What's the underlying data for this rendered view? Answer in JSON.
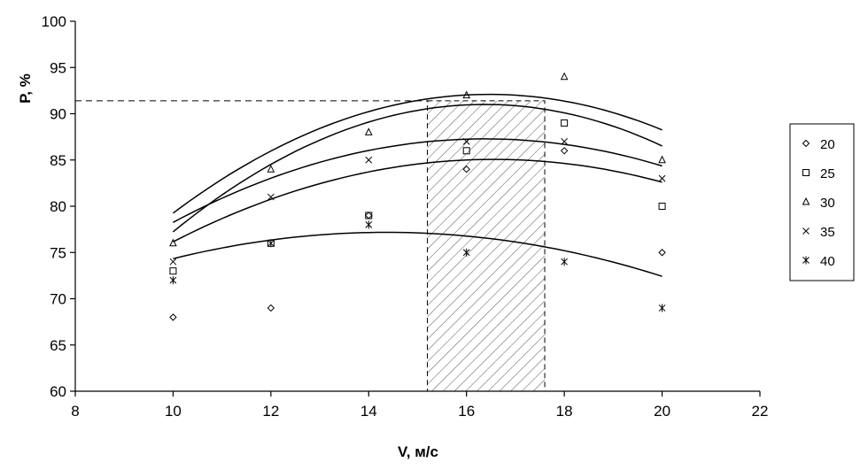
{
  "chart_data": {
    "type": "scatter",
    "title": "",
    "xlabel": "V, м/с",
    "ylabel": "P, %",
    "xlim": [
      8,
      22
    ],
    "ylim": [
      60,
      100
    ],
    "xticks": [
      8,
      10,
      12,
      14,
      16,
      18,
      20,
      22
    ],
    "yticks": [
      60,
      65,
      70,
      75,
      80,
      85,
      90,
      95,
      100
    ],
    "grid": false,
    "legend_position": "right",
    "series": [
      {
        "name": "20",
        "marker": "diamond",
        "x": [
          10,
          12,
          14,
          16,
          18,
          20
        ],
        "y": [
          68,
          69,
          79,
          84,
          86,
          75
        ],
        "fit": [
          -0.3397,
          11.12,
          0.0
        ]
      },
      {
        "name": "25",
        "marker": "square",
        "x": [
          10,
          12,
          14,
          16,
          18,
          20
        ],
        "y": [
          73,
          76,
          79,
          86,
          89,
          80
        ],
        "fit": [
          -0.2075,
          6.87,
          28.2
        ]
      },
      {
        "name": "30",
        "marker": "triangle",
        "x": [
          10,
          12,
          14,
          16,
          18,
          20
        ],
        "y": [
          76,
          84,
          88,
          92,
          94,
          85
        ],
        "fit": [
          -0.3075,
          10.125,
          8.75
        ]
      },
      {
        "name": "35",
        "marker": "x",
        "x": [
          10,
          12,
          14,
          16,
          18,
          20
        ],
        "y": [
          74,
          81,
          85,
          87,
          87,
          83
        ],
        "fit": [
          -0.2225,
          7.285,
          27.65
        ]
      },
      {
        "name": "40",
        "marker": "star",
        "x": [
          10,
          12,
          14,
          16,
          18,
          20
        ],
        "y": [
          72,
          76,
          78,
          75,
          74,
          69
        ],
        "fit": [
          -0.1497,
          4.3,
          46.3
        ]
      }
    ],
    "annotations": {
      "hatched_region": {
        "x": [
          15.2,
          17.6
        ],
        "y": [
          60,
          91.4
        ]
      },
      "reference_line": {
        "y": 91.4,
        "x": [
          8,
          15.2
        ],
        "style": "dashed"
      }
    }
  }
}
